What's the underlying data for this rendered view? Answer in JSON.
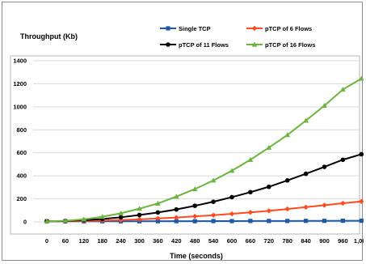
{
  "chart_data": {
    "type": "line",
    "ylabel": "Throughput (Kb)",
    "xlabel": "Time (seconds)",
    "x": [
      0,
      60,
      120,
      180,
      240,
      300,
      360,
      420,
      480,
      540,
      600,
      660,
      720,
      780,
      840,
      900,
      960,
      1000
    ],
    "x_tick_labels": [
      "0",
      "60",
      "120",
      "180",
      "240",
      "300",
      "360",
      "420",
      "480",
      "540",
      "600",
      "660",
      "720",
      "780",
      "840",
      "900",
      "960",
      "1,000"
    ],
    "ylim": [
      0,
      1400
    ],
    "y_ticks": [
      0,
      200,
      400,
      600,
      800,
      1000,
      1200,
      1400
    ],
    "grid": "horizontal",
    "legend_position": "top",
    "series": [
      {
        "name": "Single TCP",
        "color": "#1f5aa6",
        "marker": "square",
        "values": [
          5,
          5,
          5,
          5,
          5,
          5,
          6,
          6,
          6,
          7,
          7,
          8,
          8,
          8,
          9,
          9,
          10,
          10
        ]
      },
      {
        "name": "pTCP of 6 Flows",
        "color": "#ff4b1f",
        "marker": "diamond",
        "values": [
          5,
          6,
          8,
          12,
          16,
          22,
          30,
          38,
          48,
          58,
          70,
          83,
          96,
          112,
          128,
          145,
          162,
          178
        ]
      },
      {
        "name": "pTCP of 11 Flows",
        "color": "#000000",
        "marker": "circle",
        "values": [
          5,
          8,
          15,
          25,
          40,
          60,
          82,
          108,
          140,
          175,
          215,
          258,
          305,
          360,
          418,
          478,
          540,
          588
        ]
      },
      {
        "name": "pTCP of 16 Flows",
        "color": "#6cb33f",
        "marker": "triangle",
        "values": [
          5,
          10,
          22,
          45,
          75,
          115,
          160,
          220,
          285,
          360,
          445,
          540,
          645,
          755,
          880,
          1010,
          1150,
          1245
        ]
      }
    ]
  }
}
